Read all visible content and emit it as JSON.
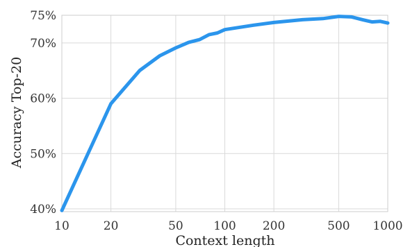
{
  "chart_data": {
    "type": "line",
    "xlabel": "Context length",
    "ylabel": "Accuracy Top-20",
    "xscale": "log",
    "xlim": [
      10,
      1000
    ],
    "ylim": [
      39.5,
      75
    ],
    "grid": true,
    "line_color": "#2b95ec",
    "x_ticks": [
      {
        "value": 10,
        "label": "10"
      },
      {
        "value": 20,
        "label": "20"
      },
      {
        "value": 50,
        "label": "50"
      },
      {
        "value": 100,
        "label": "100"
      },
      {
        "value": 200,
        "label": "200"
      },
      {
        "value": 500,
        "label": "500"
      },
      {
        "value": 1000,
        "label": "1000"
      }
    ],
    "y_ticks": [
      {
        "value": 40,
        "label": "40%"
      },
      {
        "value": 50,
        "label": "50%"
      },
      {
        "value": 60,
        "label": "60%"
      },
      {
        "value": 70,
        "label": "70%"
      },
      {
        "value": 75,
        "label": "75%"
      }
    ],
    "series": [
      {
        "x": [
          10,
          20,
          30,
          40,
          50,
          60,
          70,
          80,
          90,
          100,
          150,
          200,
          300,
          400,
          500,
          600,
          700,
          800,
          900,
          1000
        ],
        "y": [
          39.7,
          59.0,
          65.0,
          67.7,
          69.1,
          70.1,
          70.6,
          71.5,
          71.8,
          72.4,
          73.2,
          73.7,
          74.2,
          74.4,
          74.8,
          74.7,
          74.2,
          73.8,
          73.9,
          73.6
        ]
      }
    ]
  }
}
